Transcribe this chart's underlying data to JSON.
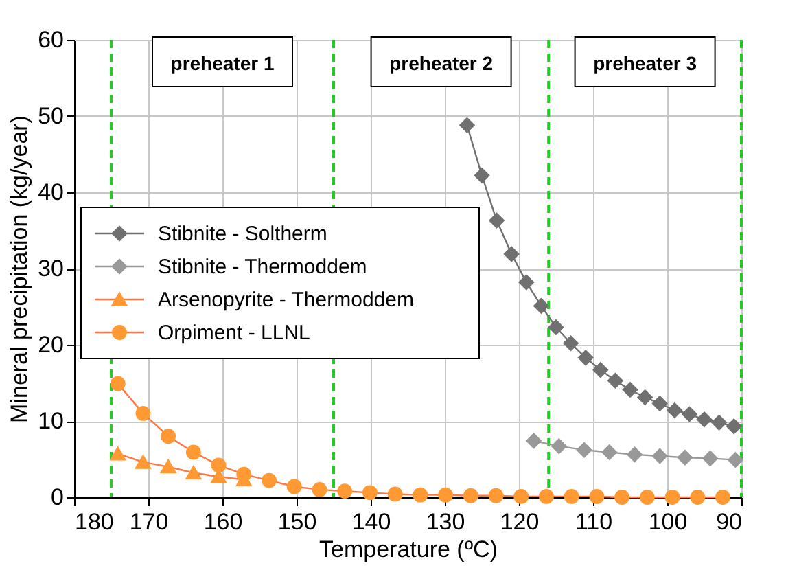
{
  "chart_data": {
    "type": "line",
    "xlabel": "Temperature (ºC)",
    "ylabel": "Mineral precipitation (kg/year)",
    "xlim": [
      180,
      90
    ],
    "xticks": [
      180,
      170,
      160,
      150,
      140,
      130,
      120,
      110,
      100,
      90
    ],
    "ylim": [
      0,
      60
    ],
    "yticks": [
      0,
      10,
      20,
      30,
      40,
      50,
      60
    ],
    "grid": true,
    "legend": "left",
    "line_style": "solid",
    "series": [
      {
        "name": "Stibnite - Soltherm",
        "color": "#707070",
        "marker": "diamond",
        "x": [
          127,
          125,
          123,
          121,
          119,
          117,
          115,
          113,
          111,
          109,
          107,
          105,
          103,
          101,
          99,
          97,
          95,
          93,
          91
        ],
        "values": [
          48.8,
          42.2,
          36.3,
          31.9,
          28.2,
          25.1,
          22.3,
          20.2,
          18.3,
          16.7,
          15.3,
          14.1,
          13.1,
          12.3,
          11.4,
          10.9,
          10.2,
          9.8,
          9.3
        ]
      },
      {
        "name": "Stibnite - Thermoddem",
        "color": "#999999",
        "marker": "diamond",
        "x": [
          118,
          114.6,
          111.2,
          107.8,
          104.4,
          101,
          97.6,
          94.2,
          90.8
        ],
        "values": [
          7.4,
          6.7,
          6.2,
          5.9,
          5.6,
          5.4,
          5.2,
          5.1,
          4.9
        ]
      },
      {
        "name": "Arsenopyrite - Thermoddem",
        "color": "#ff9933",
        "marker": "triangle",
        "x": [
          174.1,
          170.7,
          167.3,
          163.9,
          160.5,
          157.1
        ],
        "values": [
          5.7,
          4.6,
          4.0,
          3.2,
          2.7,
          2.3
        ]
      },
      {
        "name": "Orpiment - LLNL",
        "color": "#ff9933",
        "marker": "circle",
        "x": [
          174.1,
          170.7,
          167.3,
          163.9,
          160.5,
          157.1,
          153.7,
          150.3,
          146.9,
          143.5,
          140.1,
          136.7,
          133.3,
          129.9,
          126.5,
          123.1,
          119.7,
          116.3,
          112.9,
          109.5,
          106.1,
          102.7,
          99.3,
          95.9,
          92.5
        ],
        "values": [
          14.9,
          11.0,
          8.0,
          5.9,
          4.2,
          3.0,
          2.2,
          1.4,
          1.0,
          0.8,
          0.6,
          0.4,
          0.3,
          0.3,
          0.2,
          0.2,
          0.1,
          0.1,
          0.1,
          0.1,
          0,
          0,
          0,
          0,
          0
        ]
      }
    ],
    "ref_lines": [
      {
        "axis": "x",
        "value": 175,
        "color": "#22cc22",
        "line_style": "dashed"
      },
      {
        "axis": "x",
        "value": 145,
        "color": "#22cc22",
        "line_style": "dashed"
      },
      {
        "axis": "x",
        "value": 116,
        "color": "#22cc22",
        "line_style": "dashed"
      },
      {
        "axis": "x",
        "value": 90,
        "color": "#22cc22",
        "line_style": "dashed"
      }
    ],
    "annotations": [
      "preheater 1",
      "preheater 2",
      "preheater 3"
    ]
  }
}
